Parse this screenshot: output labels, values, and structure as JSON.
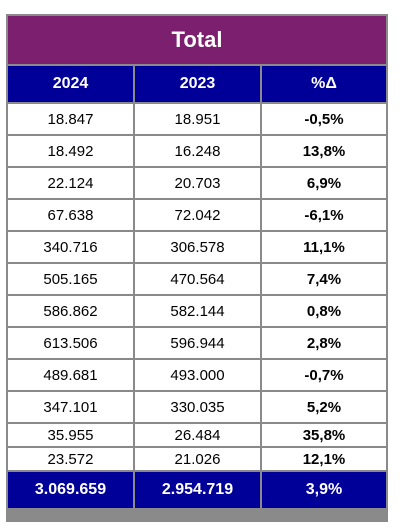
{
  "title": "Total",
  "headers": [
    "2024",
    "2023",
    "%Δ"
  ],
  "rows": [
    [
      "18.847",
      "18.951",
      "-0,5%"
    ],
    [
      "18.492",
      "16.248",
      "13,8%"
    ],
    [
      "22.124",
      "20.703",
      "6,9%"
    ],
    [
      "67.638",
      "72.042",
      "-6,1%"
    ],
    [
      "340.716",
      "306.578",
      "11,1%"
    ],
    [
      "505.165",
      "470.564",
      "7,4%"
    ],
    [
      "586.862",
      "582.144",
      "0,8%"
    ],
    [
      "613.506",
      "596.944",
      "2,8%"
    ],
    [
      "489.681",
      "493.000",
      "-0,7%"
    ],
    [
      "347.101",
      "330.035",
      "5,2%"
    ],
    [
      "35.955",
      "26.484",
      "35,8%"
    ],
    [
      "23.572",
      "21.026",
      "12,1%"
    ]
  ],
  "total": [
    "3.069.659",
    "2.954.719",
    "3,9%"
  ],
  "colors": {
    "title_bg": "#7b1f6e",
    "header_bg": "#000099",
    "border": "#8a8a8a"
  }
}
